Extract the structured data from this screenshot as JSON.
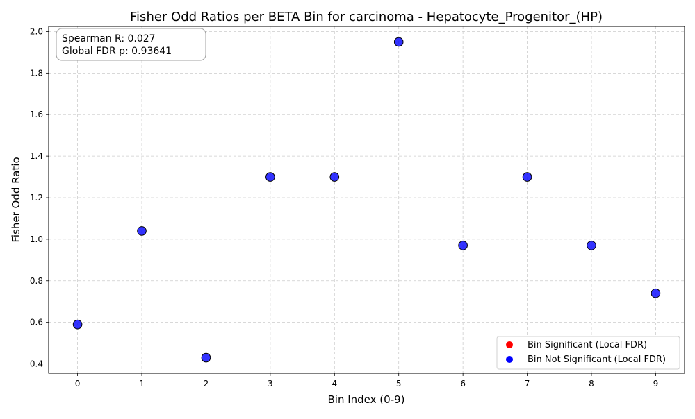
{
  "chart_data": {
    "type": "scatter",
    "title": "Fisher Odd Ratios per BETA Bin for carcinoma - Hepatocyte_Progenitor_(HP)",
    "xlabel": "Bin Index (0-9)",
    "ylabel": "Fisher Odd Ratio",
    "xlim": [
      -0.45,
      9.45
    ],
    "ylim": [
      0.355,
      2.025
    ],
    "x_ticks": [
      0,
      1,
      2,
      3,
      4,
      5,
      6,
      7,
      8,
      9
    ],
    "y_ticks": [
      0.4,
      0.6,
      0.8,
      1.0,
      1.2,
      1.4,
      1.6,
      1.8,
      2.0
    ],
    "y_tick_labels": [
      "0.4",
      "0.6",
      "0.8",
      "1.0",
      "1.2",
      "1.4",
      "1.6",
      "1.8",
      "2.0"
    ],
    "grid": true,
    "legend_position": "bottom-right",
    "series": [
      {
        "name": "Bin Significant (Local FDR)",
        "color": "#ff0000",
        "x": [],
        "y": []
      },
      {
        "name": "Bin Not Significant (Local FDR)",
        "color": "#0000ff",
        "x": [
          0,
          1,
          2,
          3,
          4,
          5,
          6,
          7,
          8,
          9
        ],
        "y": [
          0.59,
          1.04,
          0.43,
          1.3,
          1.3,
          1.95,
          0.97,
          1.3,
          0.97,
          0.74
        ]
      }
    ],
    "annotation_lines": [
      "Spearman R: 0.027",
      "Global FDR p: 0.93641"
    ]
  }
}
